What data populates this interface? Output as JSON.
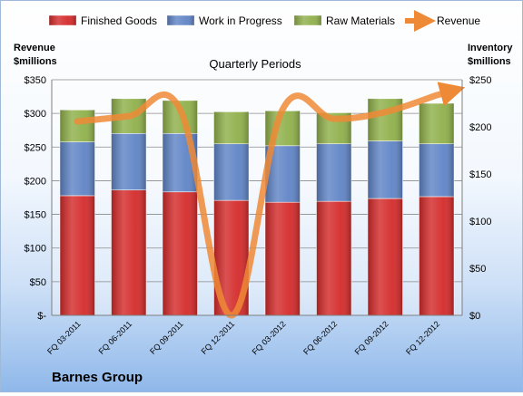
{
  "chart_data": {
    "type": "bar",
    "subtitle": "Quarterly Periods",
    "company": "Barnes Group",
    "y_left_label": [
      "Revenue",
      "$millions"
    ],
    "y_right_label": [
      "Inventory",
      "$millions"
    ],
    "categories": [
      "FQ 03-2011",
      "FQ 06-2011",
      "FQ 09-2011",
      "FQ 12-2011",
      "FQ 03-2012",
      "FQ 06-2012",
      "FQ 09-2012",
      "FQ 12-2012"
    ],
    "left_axis": {
      "min": 0,
      "max": 350,
      "step": 50,
      "ticks": [
        "$-",
        "$50",
        "$100",
        "$150",
        "$200",
        "$250",
        "$300",
        "$350"
      ]
    },
    "right_axis": {
      "min": 0,
      "max": 250,
      "step": 50,
      "ticks": [
        "$0",
        "$50",
        "$100",
        "$150",
        "$200",
        "$250"
      ]
    },
    "grid": true,
    "legend_position": "top",
    "series": [
      {
        "name": "Finished Goods",
        "kind": "bar",
        "axis": "right",
        "color": "#d42a2a",
        "values": [
          127,
          133,
          131,
          122,
          120,
          121,
          124,
          126
        ]
      },
      {
        "name": "Work in Progress",
        "kind": "bar",
        "axis": "right",
        "color": "#5f84c6",
        "values": [
          57,
          60,
          62,
          60,
          60,
          61,
          61,
          56
        ]
      },
      {
        "name": "Raw Materials",
        "kind": "bar",
        "axis": "right",
        "color": "#8fb04a",
        "values": [
          34,
          37,
          35,
          34,
          37,
          33,
          45,
          43
        ]
      },
      {
        "name": "Revenue",
        "kind": "line",
        "axis": "left",
        "color": "#ee8a36",
        "values": [
          288,
          296,
          306,
          0,
          306,
          292,
          302,
          327
        ]
      }
    ]
  }
}
